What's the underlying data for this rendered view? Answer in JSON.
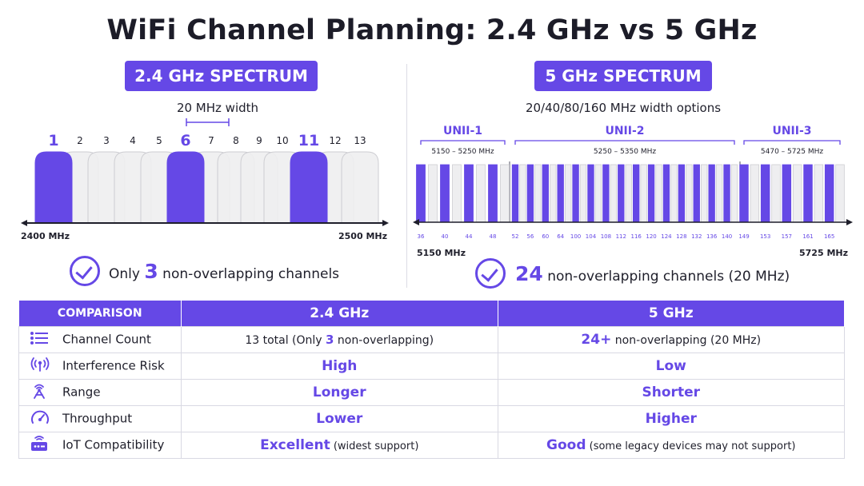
{
  "title": "WiFi Channel Planning: 2.4 GHz vs 5 GHz",
  "colors": {
    "accent": "#6548e6",
    "inactive_fill": "#eeeef0",
    "inactive_stroke": "#cdcdd2",
    "text": "#1f1f2b"
  },
  "spectrum_24": {
    "header": "2.4 GHz SPECTRUM",
    "width_label": "20 MHz width",
    "channels": [
      {
        "label": "1",
        "highlight": true
      },
      {
        "label": "2",
        "highlight": false
      },
      {
        "label": "3",
        "highlight": false
      },
      {
        "label": "4",
        "highlight": false
      },
      {
        "label": "5",
        "highlight": false
      },
      {
        "label": "6",
        "highlight": true
      },
      {
        "label": "7",
        "highlight": false
      },
      {
        "label": "8",
        "highlight": false
      },
      {
        "label": "9",
        "highlight": false
      },
      {
        "label": "10",
        "highlight": false
      },
      {
        "label": "11",
        "highlight": true
      },
      {
        "label": "12",
        "highlight": false
      },
      {
        "label": "13",
        "highlight": false
      }
    ],
    "axis_start": "2400 MHz",
    "axis_end": "2500 MHz",
    "summary_prefix": "Only",
    "summary_number": "3",
    "summary_suffix": "non-overlapping channels"
  },
  "spectrum_5": {
    "header": "5 GHz SPECTRUM",
    "width_options": "20/40/80/160 MHz width options",
    "bands": [
      {
        "name": "UNII-1",
        "range": "5150 – 5250 MHz",
        "channels": [
          "36",
          "40",
          "44",
          "48"
        ]
      },
      {
        "name": "UNII-2",
        "range": "5250 – 5350 MHz",
        "channels": [
          "52",
          "56",
          "60",
          "64",
          "100",
          "104",
          "108",
          "112",
          "116",
          "120",
          "124",
          "128",
          "132",
          "136",
          "140"
        ]
      },
      {
        "name": "UNII-3",
        "range": "5470 – 5725 MHz",
        "channels": [
          "149",
          "153",
          "157",
          "161",
          "165"
        ]
      }
    ],
    "axis_start": "5150 MHz",
    "axis_end": "5725 MHz",
    "summary_number": "24",
    "summary_suffix": "non-overlapping channels (20 MHz)"
  },
  "comparison": {
    "headers": [
      "COMPARISON",
      "2.4 GHz",
      "5 GHz"
    ],
    "rows": [
      {
        "icon": "list-icon",
        "label": "Channel Count",
        "v24": {
          "pre": "13 total (Only ",
          "hl": "3",
          "post": " non-overlapping)"
        },
        "v5": {
          "hl": "24+",
          "post": " non-overlapping (20 MHz)"
        }
      },
      {
        "icon": "antenna-signal-icon",
        "label": "Interference Risk",
        "v24": {
          "hl": "High"
        },
        "v5": {
          "hl": "Low"
        }
      },
      {
        "icon": "tower-icon",
        "label": "Range",
        "v24": {
          "hl": "Longer"
        },
        "v5": {
          "hl": "Shorter"
        }
      },
      {
        "icon": "speedometer-icon",
        "label": "Throughput",
        "v24": {
          "hl": "Lower"
        },
        "v5": {
          "hl": "Higher"
        }
      },
      {
        "icon": "router-icon",
        "label": "IoT Compatibility",
        "v24": {
          "hl": "Excellent",
          "note": " (widest support)"
        },
        "v5": {
          "hl": "Good",
          "note": " (some legacy devices may not support)"
        }
      }
    ]
  }
}
